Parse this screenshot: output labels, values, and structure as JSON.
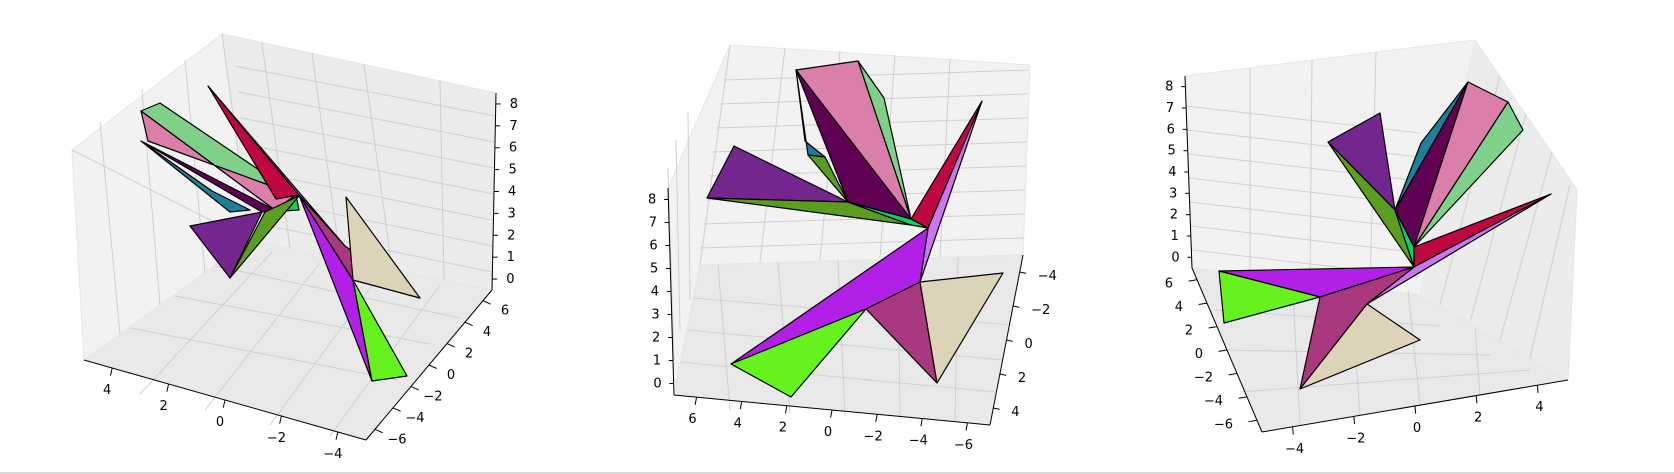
{
  "chart_data": [
    {
      "type": "3d-polygon",
      "view": "panel-1",
      "axes": {
        "x_ticks": [
          "4",
          "2",
          "0",
          "−2",
          "−4"
        ],
        "y_ticks": [
          "−6",
          "−4",
          "−2",
          "0",
          "2",
          "4",
          "6"
        ],
        "z_ticks": [
          "0",
          "1",
          "2",
          "3",
          "4",
          "5",
          "6",
          "7",
          "8"
        ]
      },
      "grid": true
    },
    {
      "type": "3d-polygon",
      "view": "panel-2",
      "axes": {
        "x_ticks": [
          "6",
          "4",
          "2",
          "0",
          "−2",
          "−4",
          "−6"
        ],
        "y_ticks": [
          "4",
          "2",
          "0",
          "−2",
          "−4"
        ],
        "z_ticks": [
          "0",
          "1",
          "2",
          "3",
          "4",
          "5",
          "6",
          "7",
          "8"
        ]
      },
      "grid": true
    },
    {
      "type": "3d-polygon",
      "view": "panel-3",
      "axes": {
        "x_ticks": [
          "−4",
          "−2",
          "0",
          "2",
          "4"
        ],
        "y_ticks": [
          "−6",
          "−4",
          "−2",
          "0",
          "2",
          "4",
          "6"
        ],
        "z_ticks": [
          "0",
          "1",
          "2",
          "3",
          "4",
          "5",
          "6",
          "7",
          "8"
        ]
      },
      "grid": true
    }
  ],
  "colors": {
    "light_green": "#7fd18a",
    "pink": "#d97fa9",
    "teal": "#1f7f99",
    "dark_purple": "#5f0052",
    "bright_green": "#0fd25c",
    "olive_green": "#5b9e1f",
    "crimson": "#c0073f",
    "violet": "#c778ee",
    "purple": "#b21fe6",
    "lime": "#66f21f",
    "magenta_mid": "#a8397f",
    "beige": "#ddd3b8",
    "grape": "#74268f"
  }
}
